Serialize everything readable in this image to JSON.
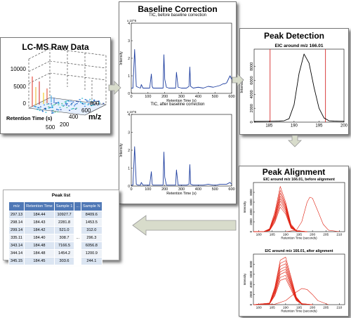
{
  "panels": {
    "raw": {
      "title": "LC-MS Raw Data",
      "z_ticks": [
        "10000",
        "5000",
        "0"
      ],
      "x_label": "Retention Time (s)",
      "x_ticks": [
        "500"
      ],
      "y_ticks": [
        "800",
        "600",
        "400",
        "200"
      ],
      "y_label": "m/z"
    },
    "baseline": {
      "title": "Baseline Correction",
      "top_chart_title": "TIC, before baseline correction",
      "bottom_chart_title": "TIC, after baseline correction"
    },
    "detection": {
      "title": "Peak Detection"
    },
    "alignment": {
      "title": "Peak Alignment"
    },
    "peak_list": {
      "title": "Peak list",
      "headers": [
        "m/z",
        "Retention Time",
        "Sample 1",
        "...",
        "Sample N"
      ],
      "rows": [
        [
          "297.13",
          "184.44",
          "10927.7",
          "",
          "8409.6"
        ],
        [
          "298.14",
          "184.43",
          "2281.8",
          "",
          "1453.5"
        ],
        [
          "299.14",
          "184.42",
          "521.0",
          "",
          "312.0"
        ],
        [
          "335.11",
          "184.40",
          "308.7",
          "...",
          "296.3"
        ],
        [
          "343.14",
          "184.48",
          "7166.5",
          "",
          "6056.8"
        ],
        [
          "344.14",
          "184.48",
          "1454.2",
          "",
          "1200.9"
        ],
        [
          "345.15",
          "184.45",
          "303.6",
          "",
          "244.1"
        ]
      ]
    }
  },
  "chart_data": [
    {
      "type": "line",
      "title": "TIC, before baseline correction",
      "xlabel": "Retention Time (s)",
      "ylabel": "Intensity",
      "y_scale_label": "x 10^6",
      "xlim": [
        0,
        600
      ],
      "ylim": [
        0,
        4
      ],
      "x_ticks": [
        0,
        100,
        200,
        300,
        400,
        500,
        600
      ],
      "y_ticks": [
        0,
        1,
        2,
        3,
        4
      ],
      "series": [
        {
          "x": [
            0,
            10,
            20,
            30,
            40,
            55,
            60,
            70,
            85,
            90,
            100,
            110,
            120,
            125,
            130,
            150,
            170,
            190,
            195,
            200,
            210,
            225,
            240,
            265,
            270,
            280,
            300,
            330,
            345,
            350,
            355,
            370,
            400,
            430,
            460,
            490,
            510,
            530,
            550,
            560,
            570,
            580,
            590,
            595,
            600
          ],
          "y": [
            0.3,
            0.3,
            2.5,
            0.4,
            0.35,
            0.3,
            0.5,
            0.3,
            0.3,
            0.3,
            0.3,
            0.3,
            1.1,
            0.4,
            0.3,
            0.3,
            0.3,
            0.3,
            2.2,
            0.8,
            0.35,
            0.3,
            0.3,
            0.3,
            1.2,
            0.35,
            0.3,
            0.3,
            0.4,
            1.5,
            0.4,
            0.3,
            0.35,
            0.3,
            0.4,
            0.35,
            0.4,
            0.45,
            0.55,
            0.55,
            0.6,
            0.8,
            1.0,
            0.9,
            0.8
          ]
        }
      ]
    },
    {
      "type": "line",
      "title": "TIC, after baseline correction",
      "xlabel": "Retention Time (s)",
      "ylabel": "Intensity",
      "y_scale_label": "x 10^6",
      "xlim": [
        0,
        600
      ],
      "ylim": [
        0,
        4
      ],
      "x_ticks": [
        0,
        100,
        200,
        300,
        400,
        500,
        600
      ],
      "y_ticks": [
        0,
        1,
        2,
        3,
        4
      ],
      "series": [
        {
          "x": [
            0,
            10,
            20,
            30,
            40,
            55,
            60,
            70,
            85,
            90,
            100,
            110,
            120,
            125,
            130,
            150,
            170,
            190,
            195,
            200,
            210,
            225,
            240,
            265,
            270,
            280,
            300,
            330,
            345,
            350,
            355,
            370,
            400,
            430,
            460,
            490,
            510,
            530,
            550,
            560,
            570,
            580,
            590,
            595,
            600
          ],
          "y": [
            0.05,
            0.05,
            2.2,
            0.1,
            0.05,
            0.05,
            0.2,
            0.05,
            0.05,
            0.05,
            0.05,
            0.05,
            0.8,
            0.1,
            0.05,
            0.05,
            0.05,
            0.05,
            1.9,
            0.5,
            0.05,
            0.05,
            0.05,
            0.05,
            0.9,
            0.05,
            0.05,
            0.05,
            0.1,
            1.2,
            0.1,
            0.05,
            0.05,
            0.05,
            0.1,
            0.05,
            0.05,
            0.1,
            0.1,
            0.1,
            0.1,
            0.15,
            0.2,
            0.15,
            0.1
          ]
        }
      ]
    },
    {
      "type": "line",
      "title": "EIC around m/z 166.01",
      "xlabel": "",
      "ylabel": "Intensity",
      "xlim": [
        182,
        200
      ],
      "ylim": [
        0,
        10500
      ],
      "x_ticks": [
        185,
        190,
        195,
        200
      ],
      "y_ticks": [
        0,
        2000,
        4000,
        6000,
        8000
      ],
      "vlines": [
        185.2,
        196.3
      ],
      "series": [
        {
          "x": [
            182,
            185,
            186,
            187,
            188,
            189,
            190,
            191,
            192,
            193,
            194,
            195,
            196,
            197,
            198,
            199,
            200
          ],
          "y": [
            100,
            120,
            130,
            150,
            200,
            500,
            2500,
            7000,
            9800,
            8500,
            5000,
            2000,
            600,
            200,
            150,
            130,
            120
          ]
        }
      ]
    },
    {
      "type": "line",
      "title": "EIC around m/z 166.01, before alignment",
      "xlabel": "Retention Time (seconds)",
      "ylabel": "Intensity",
      "xlim": [
        178,
        212
      ],
      "ylim": [
        0,
        10000
      ],
      "x_ticks": [
        180,
        185,
        190,
        195,
        200,
        205,
        210
      ],
      "y_ticks": [
        0,
        2000,
        4000,
        6000,
        8000
      ],
      "series": [
        {
          "x": [
            178,
            182,
            184,
            186,
            188,
            190,
            192,
            194,
            198
          ],
          "y": [
            0,
            50,
            600,
            4000,
            9200,
            6000,
            1500,
            200,
            0
          ]
        },
        {
          "x": [
            178,
            182,
            184,
            186,
            188,
            190,
            192,
            194,
            198
          ],
          "y": [
            0,
            50,
            500,
            3500,
            8400,
            5500,
            1300,
            200,
            0
          ]
        },
        {
          "x": [
            178,
            182,
            184,
            186,
            188,
            190,
            192,
            194,
            198
          ],
          "y": [
            0,
            50,
            450,
            3200,
            7800,
            5300,
            1200,
            200,
            0
          ]
        },
        {
          "x": [
            178,
            182,
            184,
            186,
            188,
            190,
            192,
            194,
            198
          ],
          "y": [
            0,
            40,
            400,
            3000,
            7200,
            5000,
            1100,
            150,
            0
          ]
        },
        {
          "x": [
            178,
            182,
            184,
            186,
            188,
            190,
            192,
            194,
            198
          ],
          "y": [
            0,
            40,
            350,
            2800,
            6700,
            4700,
            1000,
            150,
            0
          ]
        },
        {
          "x": [
            178,
            182,
            184,
            186,
            188,
            190,
            192,
            194,
            198
          ],
          "y": [
            0,
            30,
            300,
            2500,
            6200,
            4400,
            900,
            100,
            0
          ]
        },
        {
          "x": [
            178,
            182,
            184,
            186,
            188,
            190,
            192,
            194,
            198
          ],
          "y": [
            0,
            30,
            250,
            2200,
            5600,
            4000,
            800,
            100,
            0
          ]
        },
        {
          "x": [
            178,
            182,
            184,
            186,
            188,
            190,
            192,
            194,
            198
          ],
          "y": [
            0,
            20,
            200,
            1900,
            5000,
            3600,
            700,
            100,
            0
          ]
        },
        {
          "x": [
            190,
            194,
            196,
            198,
            199,
            200,
            202,
            204,
            206,
            210
          ],
          "y": [
            0,
            300,
            2000,
            6000,
            7000,
            6800,
            4200,
            1500,
            300,
            0
          ]
        }
      ]
    },
    {
      "type": "line",
      "title": "EIC around m/z 166.01, after alignment",
      "xlabel": "Retention Time (seconds)",
      "ylabel": "Intensity",
      "xlim": [
        178,
        212
      ],
      "ylim": [
        0,
        10000
      ],
      "x_ticks": [
        180,
        185,
        190,
        195,
        200,
        205,
        210
      ],
      "y_ticks": [
        0,
        2000,
        4000,
        6000,
        8000
      ],
      "series": [
        {
          "x": [
            178,
            184,
            186,
            188,
            190,
            192,
            194,
            196,
            200
          ],
          "y": [
            0,
            300,
            3500,
            8800,
            9400,
            5500,
            1500,
            200,
            0
          ]
        },
        {
          "x": [
            178,
            184,
            186,
            188,
            190,
            192,
            194,
            196,
            200
          ],
          "y": [
            0,
            300,
            3200,
            8200,
            8700,
            5100,
            1400,
            200,
            0
          ]
        },
        {
          "x": [
            178,
            184,
            186,
            188,
            190,
            192,
            194,
            196,
            200
          ],
          "y": [
            0,
            250,
            2900,
            7600,
            8100,
            4700,
            1300,
            200,
            0
          ]
        },
        {
          "x": [
            178,
            184,
            186,
            188,
            190,
            192,
            194,
            196,
            200
          ],
          "y": [
            0,
            250,
            2700,
            7000,
            7500,
            4400,
            1200,
            150,
            0
          ]
        },
        {
          "x": [
            178,
            184,
            186,
            188,
            190,
            192,
            194,
            196,
            200
          ],
          "y": [
            0,
            200,
            2500,
            6500,
            7000,
            4100,
            1100,
            150,
            0
          ]
        },
        {
          "x": [
            178,
            184,
            186,
            188,
            190,
            192,
            194,
            196,
            200
          ],
          "y": [
            0,
            200,
            2300,
            6000,
            6500,
            3800,
            1000,
            100,
            0
          ]
        },
        {
          "x": [
            178,
            184,
            186,
            188,
            190,
            192,
            194,
            196,
            200
          ],
          "y": [
            0,
            150,
            2000,
            5400,
            5800,
            3400,
            900,
            100,
            0
          ]
        },
        {
          "x": [
            178,
            184,
            186,
            188,
            190,
            192,
            194,
            196,
            200
          ],
          "y": [
            0,
            150,
            1800,
            4800,
            5200,
            3000,
            800,
            100,
            0
          ]
        },
        {
          "x": [
            178,
            186,
            190,
            194,
            196,
            198,
            200,
            202,
            206
          ],
          "y": [
            0,
            100,
            800,
            2500,
            3200,
            3000,
            2000,
            800,
            0
          ]
        }
      ]
    }
  ]
}
